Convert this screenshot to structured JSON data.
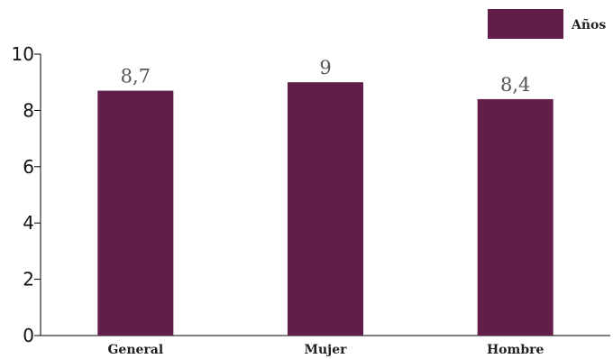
{
  "chart_data": {
    "type": "bar",
    "categories": [
      "General",
      "Mujer",
      "Hombre"
    ],
    "series": [
      {
        "name": "Años",
        "values": [
          8.7,
          9,
          8.4
        ],
        "labels": [
          "8,7",
          "9",
          "8,4"
        ],
        "color": "#631d49"
      }
    ],
    "ylim": [
      0,
      10
    ],
    "yticks": [
      0,
      2,
      4,
      6,
      8,
      10
    ],
    "legend_position": "top-right",
    "grid": false
  }
}
